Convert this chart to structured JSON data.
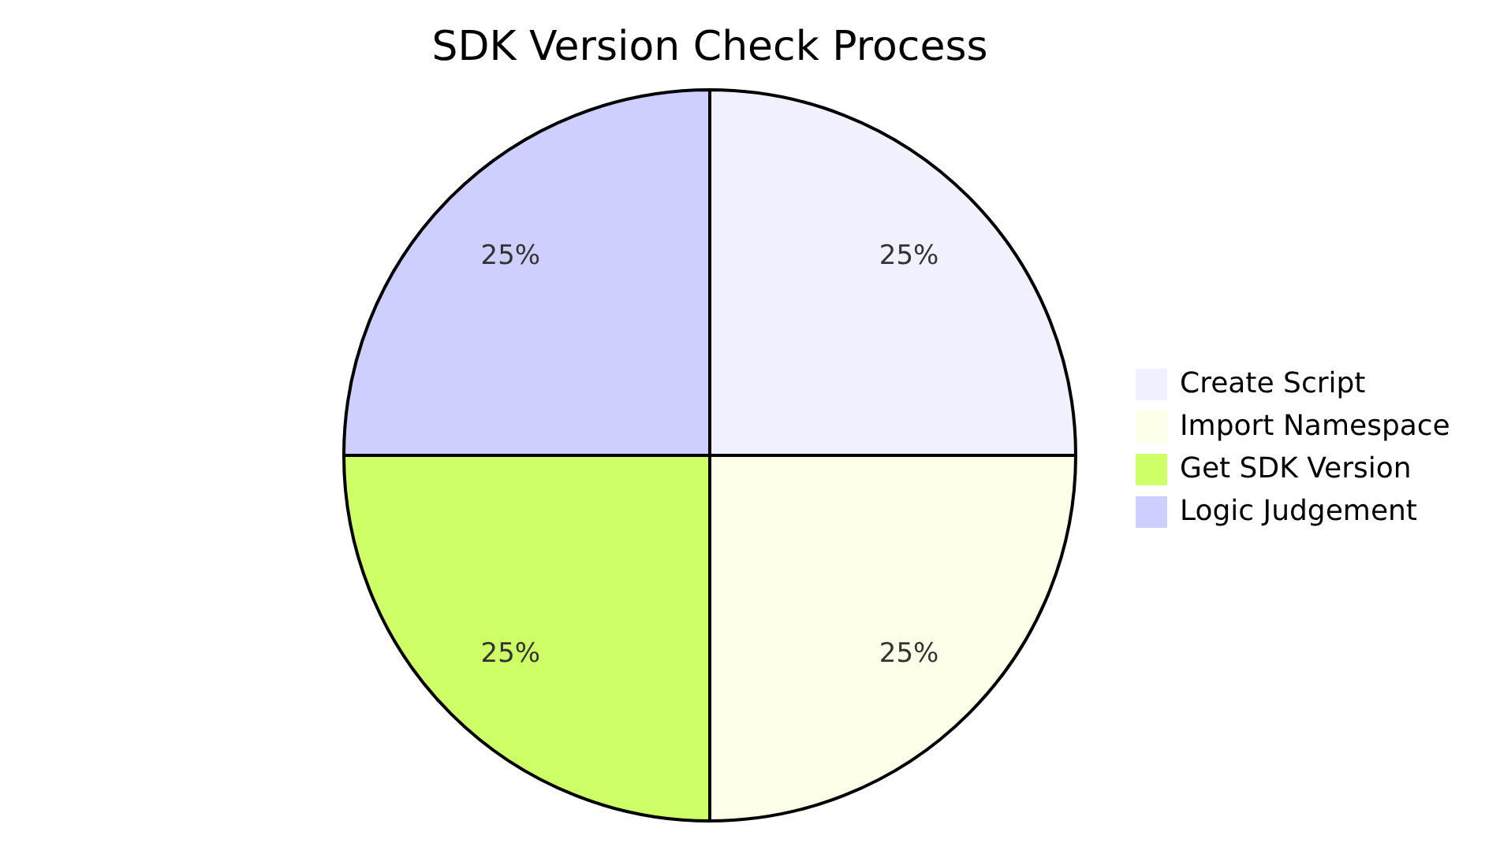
{
  "chart_data": {
    "type": "pie",
    "title": "SDK Version Check Process",
    "categories": [
      "Create Script",
      "Import Namespace",
      "Get SDK Version",
      "Logic Judgement"
    ],
    "values": [
      25,
      25,
      25,
      25
    ],
    "value_labels": [
      "25%",
      "25%",
      "25%",
      "25%"
    ],
    "colors": [
      "#f0f0ff",
      "#fdffe8",
      "#ceff66",
      "#cecfff"
    ],
    "legend": "right"
  }
}
